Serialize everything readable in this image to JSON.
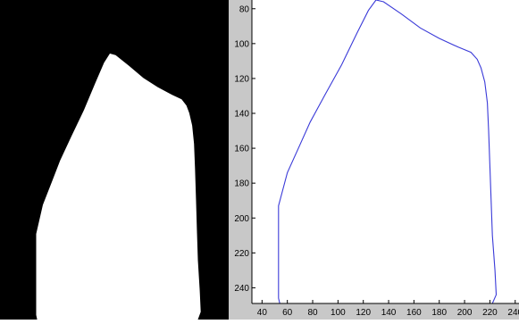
{
  "colors": {
    "mask_background": "#000000",
    "mask_foreground": "#ffffff",
    "plot_background": "#ffffff",
    "figure_background": "#c8c8c8",
    "contour_line": "#3a3ad8",
    "axis": "#000000"
  },
  "chart_data": [
    {
      "type": "image",
      "panel": "left",
      "content": "binary segmentation mask: white region on black background"
    },
    {
      "type": "line",
      "panel": "right",
      "title": "",
      "xlabel": "",
      "ylabel": "",
      "y_reversed": true,
      "grid": false,
      "legend": "none",
      "xlim": [
        32,
        243
      ],
      "ylim": [
        249,
        75
      ],
      "xticks": [
        40,
        60,
        80,
        100,
        120,
        140,
        160,
        180,
        200,
        220,
        240
      ],
      "yticks": [
        80,
        100,
        120,
        140,
        160,
        180,
        200,
        220,
        240
      ],
      "xtick_labels": [
        "40",
        "60",
        "80",
        "100",
        "120",
        "140",
        "160",
        "180",
        "200",
        "220",
        "240"
      ],
      "ytick_labels": [
        "80",
        "100",
        "120",
        "140",
        "160",
        "180",
        "200",
        "220",
        "240"
      ],
      "series": [
        {
          "x": [
            54,
            53,
            53,
            60,
            70,
            78,
            90,
            103,
            115,
            124,
            130,
            136,
            150,
            165,
            180,
            195,
            205,
            210,
            213,
            216,
            218,
            219,
            220,
            221,
            222,
            224,
            225,
            222,
            54
          ],
          "y": [
            249,
            246,
            193,
            174,
            158,
            145,
            129,
            112,
            94,
            81,
            75,
            76,
            83,
            91,
            97,
            102,
            105,
            109,
            114,
            122,
            134,
            150,
            170,
            190,
            210,
            230,
            244,
            249,
            249
          ]
        }
      ]
    }
  ]
}
